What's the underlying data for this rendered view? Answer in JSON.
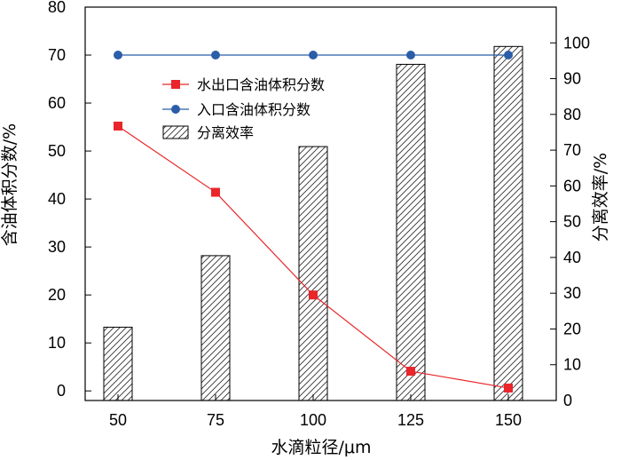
{
  "chart_data": {
    "type": "bar+line",
    "categories": [
      "50",
      "75",
      "100",
      "125",
      "150"
    ],
    "x_values": [
      50,
      75,
      100,
      125,
      150
    ],
    "xlabel": "水滴粒径/μm",
    "ylabel_left": "含油体积分数/%",
    "ylabel_right": "分离效率/%",
    "ylim_left": [
      -2,
      80
    ],
    "yticks_left": [
      0,
      10,
      20,
      30,
      40,
      50,
      60,
      70,
      80
    ],
    "ylim_right": [
      0,
      110
    ],
    "yticks_right": [
      0,
      10,
      20,
      30,
      40,
      50,
      60,
      70,
      80,
      90,
      100
    ],
    "grid": false,
    "legend_position": "upper-middle",
    "series": [
      {
        "name": "水出口含油体积分数",
        "type": "line",
        "axis": "left",
        "marker": "square",
        "color": "#e8262b",
        "values": [
          55.2,
          41.4,
          20.0,
          4.1,
          0.6
        ]
      },
      {
        "name": "入口含油体积分数",
        "type": "line",
        "axis": "left",
        "marker": "circle",
        "color": "#2b5ea8",
        "values": [
          70.0,
          70.0,
          70.0,
          70.0,
          70.0
        ]
      },
      {
        "name": "分离效率",
        "type": "bar",
        "axis": "right",
        "pattern": "diagonal-hatch",
        "values": [
          20.5,
          40.5,
          71.0,
          94.0,
          99.0
        ]
      }
    ]
  }
}
